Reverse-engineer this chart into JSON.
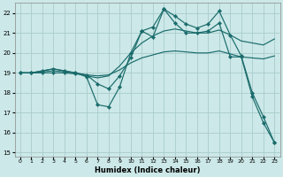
{
  "xlabel": "Humidex (Indice chaleur)",
  "ylabel": "",
  "background_color": "#cce8e8",
  "grid_color": "#aacccc",
  "line_color": "#1a6b6b",
  "xlim": [
    -0.5,
    23.5
  ],
  "ylim": [
    14.8,
    22.5
  ],
  "yticks": [
    15,
    16,
    17,
    18,
    19,
    20,
    21,
    22
  ],
  "xtick_labels": [
    "0",
    "1",
    "2",
    "3",
    "4",
    "5",
    "6",
    "7",
    "8",
    "9",
    "10",
    "11",
    "12",
    "13",
    "14",
    "15",
    "16",
    "17",
    "18",
    "19",
    "20",
    "21",
    "22",
    "23"
  ],
  "lines": [
    {
      "x": [
        0,
        1,
        2,
        3,
        4,
        5,
        6,
        7,
        8,
        9,
        10,
        11,
        12,
        13,
        14,
        15,
        16,
        17,
        18,
        19,
        20,
        21,
        22,
        23
      ],
      "y": [
        19.0,
        19.0,
        19.1,
        19.2,
        19.1,
        19.0,
        18.8,
        17.4,
        17.3,
        18.3,
        20.0,
        21.1,
        20.8,
        22.2,
        21.5,
        21.0,
        21.0,
        21.1,
        21.5,
        19.8,
        19.8,
        17.8,
        16.5,
        15.5
      ],
      "marker": true,
      "markersize": 2.2
    },
    {
      "x": [
        0,
        1,
        2,
        3,
        4,
        5,
        6,
        7,
        8,
        9,
        10,
        11,
        12,
        13,
        14,
        15,
        16,
        17,
        18,
        19,
        20,
        21,
        22,
        23
      ],
      "y": [
        19.0,
        19.0,
        19.1,
        19.2,
        19.1,
        19.0,
        18.85,
        18.75,
        18.85,
        19.35,
        20.0,
        20.5,
        20.85,
        21.1,
        21.2,
        21.1,
        21.0,
        21.0,
        21.15,
        20.9,
        20.6,
        20.5,
        20.4,
        20.7
      ],
      "marker": false,
      "markersize": 0
    },
    {
      "x": [
        0,
        1,
        2,
        3,
        4,
        5,
        6,
        7,
        8,
        9,
        10,
        11,
        12,
        13,
        14,
        15,
        16,
        17,
        18,
        19,
        20,
        21,
        22,
        23
      ],
      "y": [
        19.0,
        19.0,
        19.05,
        19.1,
        19.05,
        19.0,
        18.9,
        18.85,
        18.9,
        19.15,
        19.5,
        19.75,
        19.9,
        20.05,
        20.1,
        20.05,
        20.0,
        20.0,
        20.1,
        19.95,
        19.8,
        19.75,
        19.7,
        19.85
      ],
      "marker": false,
      "markersize": 0
    },
    {
      "x": [
        0,
        1,
        2,
        3,
        4,
        5,
        6,
        7,
        8,
        9,
        10,
        11,
        12,
        13,
        14,
        15,
        16,
        17,
        18,
        19,
        20,
        21,
        22,
        23
      ],
      "y": [
        19.0,
        19.0,
        19.0,
        19.0,
        19.0,
        18.95,
        18.9,
        18.45,
        18.2,
        18.85,
        19.75,
        21.1,
        21.3,
        22.2,
        21.85,
        21.45,
        21.25,
        21.45,
        22.1,
        20.9,
        19.85,
        18.0,
        16.8,
        15.5
      ],
      "marker": true,
      "markersize": 2.2
    }
  ]
}
